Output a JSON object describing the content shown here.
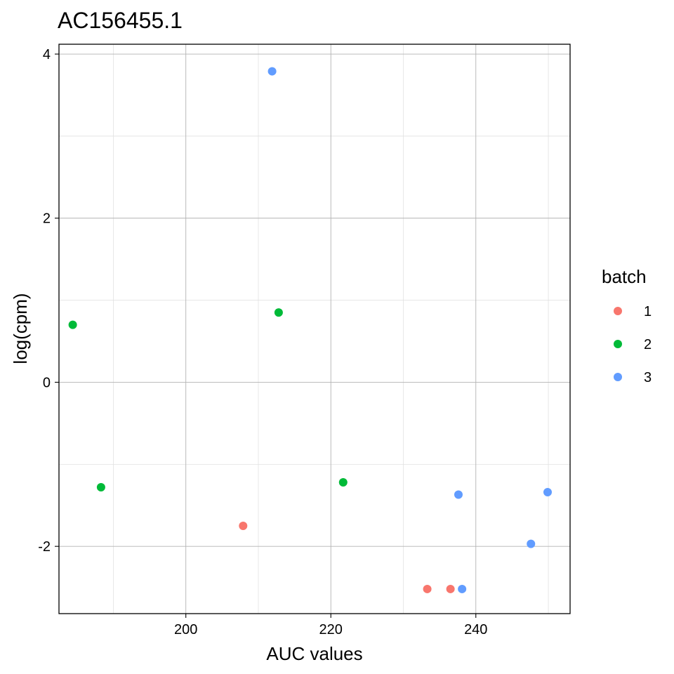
{
  "chart_data": {
    "type": "scatter",
    "title": "AC156455.1",
    "xlabel": "AUC values",
    "ylabel": "log(cpm)",
    "xlim": [
      182.5,
      253
    ],
    "ylim": [
      -2.82,
      4.12
    ],
    "x_ticks": [
      200,
      220,
      240
    ],
    "x_tick_labels": [
      "200",
      "220",
      "240"
    ],
    "y_ticks": [
      -2,
      0,
      2,
      4
    ],
    "y_tick_labels": [
      "-2",
      "0",
      "2",
      "4"
    ],
    "x_minor_ticks": [
      190,
      210,
      230,
      250
    ],
    "y_minor_ticks": [
      -1,
      1,
      3
    ],
    "grid": true,
    "legend": {
      "title": "batch",
      "placement": "right",
      "entries": [
        "1",
        "2",
        "3"
      ]
    },
    "series": [
      {
        "name": "1",
        "color": "#F8766D",
        "points": [
          {
            "x": 207.9,
            "y": -1.75
          },
          {
            "x": 233.3,
            "y": -2.52
          },
          {
            "x": 236.5,
            "y": -2.52
          }
        ]
      },
      {
        "name": "2",
        "color": "#00BA38",
        "points": [
          {
            "x": 184.4,
            "y": 0.7
          },
          {
            "x": 188.3,
            "y": -1.28
          },
          {
            "x": 212.8,
            "y": 0.85
          },
          {
            "x": 221.7,
            "y": -1.22
          }
        ]
      },
      {
        "name": "3",
        "color": "#619CFF",
        "points": [
          {
            "x": 211.9,
            "y": 3.79
          },
          {
            "x": 237.6,
            "y": -1.37
          },
          {
            "x": 238.1,
            "y": -2.52
          },
          {
            "x": 247.6,
            "y": -1.97
          },
          {
            "x": 249.9,
            "y": -1.34
          }
        ]
      }
    ]
  }
}
